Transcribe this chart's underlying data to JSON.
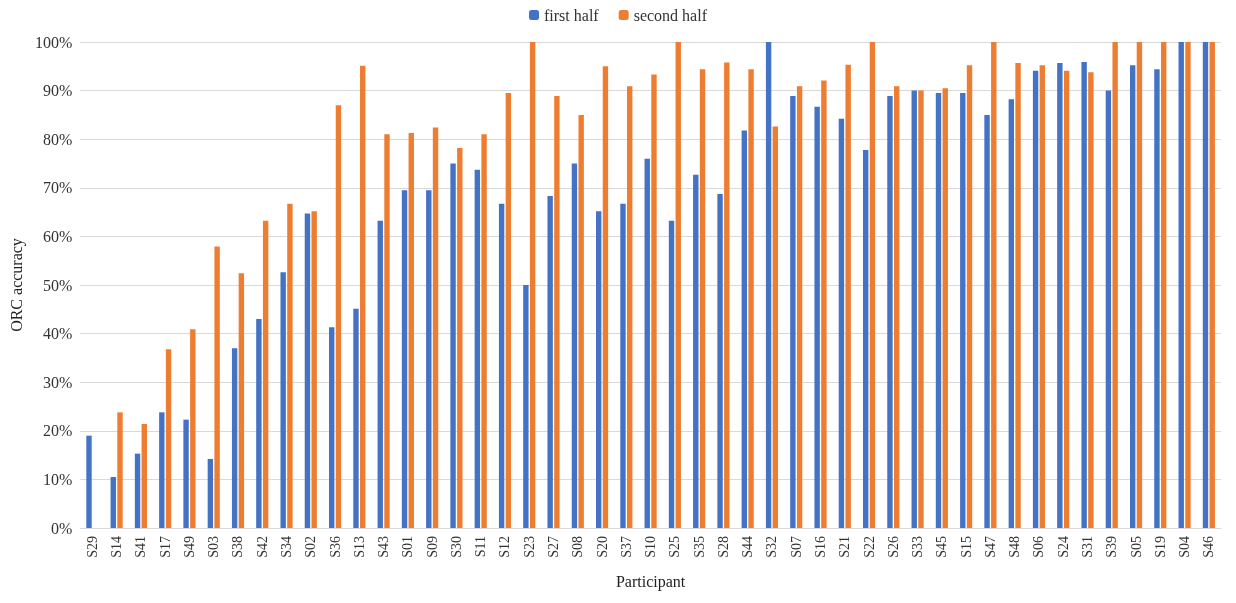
{
  "chart_data": {
    "type": "bar",
    "xlabel": "Participant",
    "ylabel": "ORC accuracy",
    "categories": [
      "S29",
      "S14",
      "S41",
      "S17",
      "S49",
      "S03",
      "S38",
      "S42",
      "S34",
      "S02",
      "S36",
      "S13",
      "S43",
      "S01",
      "S09",
      "S30",
      "S11",
      "S12",
      "S23",
      "S27",
      "S08",
      "S20",
      "S37",
      "S10",
      "S25",
      "S35",
      "S28",
      "S44",
      "S32",
      "S07",
      "S16",
      "S21",
      "S22",
      "S26",
      "S33",
      "S45",
      "S15",
      "S47",
      "S48",
      "S06",
      "S24",
      "S31",
      "S39",
      "S05",
      "S19",
      "S04",
      "S46"
    ],
    "series": [
      {
        "name": "first half",
        "color": "#4472c4",
        "values": [
          19,
          10.5,
          15.3,
          23.8,
          22.3,
          14.2,
          37,
          43,
          52.6,
          64.7,
          41.3,
          45.1,
          63.2,
          69.5,
          69.5,
          75,
          73.7,
          66.7,
          50,
          68.3,
          75,
          65.2,
          66.7,
          76,
          63.2,
          72.7,
          68.7,
          81.8,
          100,
          88.9,
          86.7,
          84.2,
          77.8,
          88.9,
          90,
          89.5,
          89.5,
          85,
          88.2,
          94.1,
          95.7,
          95.9,
          90,
          95.2,
          94.4,
          100,
          100
        ]
      },
      {
        "name": "second half",
        "color": "#ed7d31",
        "values": [
          0,
          23.8,
          21.4,
          36.8,
          40.9,
          57.9,
          52.4,
          63.2,
          66.7,
          65.2,
          87,
          95.1,
          81,
          81.3,
          82.4,
          78.2,
          81,
          89.5,
          100,
          88.9,
          85,
          95,
          90.9,
          93.3,
          100,
          94.4,
          95.8,
          94.4,
          82.6,
          90.9,
          92.1,
          95.3,
          100,
          90.9,
          90,
          90.5,
          95.2,
          100,
          95.7,
          95.2,
          94.1,
          93.8,
          100,
          100,
          100,
          100,
          100
        ]
      }
    ],
    "ylim": [
      0,
      100
    ],
    "yticks": [
      {
        "value": 0,
        "label": "0%"
      },
      {
        "value": 10,
        "label": "10%"
      },
      {
        "value": 20,
        "label": "20%"
      },
      {
        "value": 30,
        "label": "30%"
      },
      {
        "value": 40,
        "label": "40%"
      },
      {
        "value": 50,
        "label": "50%"
      },
      {
        "value": 60,
        "label": "60%"
      },
      {
        "value": 70,
        "label": "70%"
      },
      {
        "value": 80,
        "label": "80%"
      },
      {
        "value": 90,
        "label": "90%"
      },
      {
        "value": 100,
        "label": "100%"
      }
    ],
    "grid": "y",
    "legend": "top"
  }
}
